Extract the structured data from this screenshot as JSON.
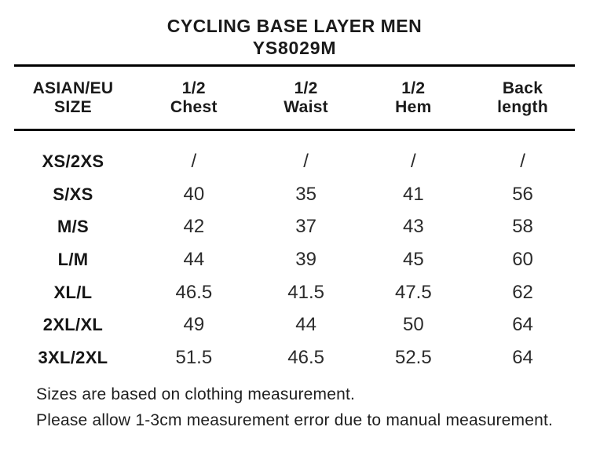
{
  "chart_data": {
    "type": "table",
    "title": "CYCLING BASE LAYER MEN",
    "subtitle": "YS8029M",
    "columns": [
      {
        "line1": "ASIAN/EU",
        "line2": "SIZE",
        "full": "ASIAN/EU SIZE"
      },
      {
        "line1": "1/2",
        "line2": "Chest",
        "full": "1/2 Chest"
      },
      {
        "line1": "1/2",
        "line2": "Waist",
        "full": "1/2 Waist"
      },
      {
        "line1": "1/2",
        "line2": "Hem",
        "full": "1/2 Hem"
      },
      {
        "line1": "Back",
        "line2": "length",
        "full": "Back length"
      }
    ],
    "rows": [
      {
        "size": "XS/2XS",
        "values": [
          "/",
          "/",
          "/",
          "/"
        ]
      },
      {
        "size": "S/XS",
        "values": [
          "40",
          "35",
          "41",
          "56"
        ]
      },
      {
        "size": "M/S",
        "values": [
          "42",
          "37",
          "43",
          "58"
        ]
      },
      {
        "size": "L/M",
        "values": [
          "44",
          "39",
          "45",
          "60"
        ]
      },
      {
        "size": "XL/L",
        "values": [
          "46.5",
          "41.5",
          "47.5",
          "62"
        ]
      },
      {
        "size": "2XL/XL",
        "values": [
          "49",
          "44",
          "50",
          "64"
        ]
      },
      {
        "size": "3XL/2XL",
        "values": [
          "51.5",
          "46.5",
          "52.5",
          "64"
        ]
      }
    ],
    "notes": [
      "Sizes are based on clothing measurement.",
      "Please allow 1-3cm measurement error due to manual measurement."
    ]
  },
  "colors": {
    "background": "#ffffff",
    "text": "#1a1a1a",
    "rule": "#000000"
  }
}
